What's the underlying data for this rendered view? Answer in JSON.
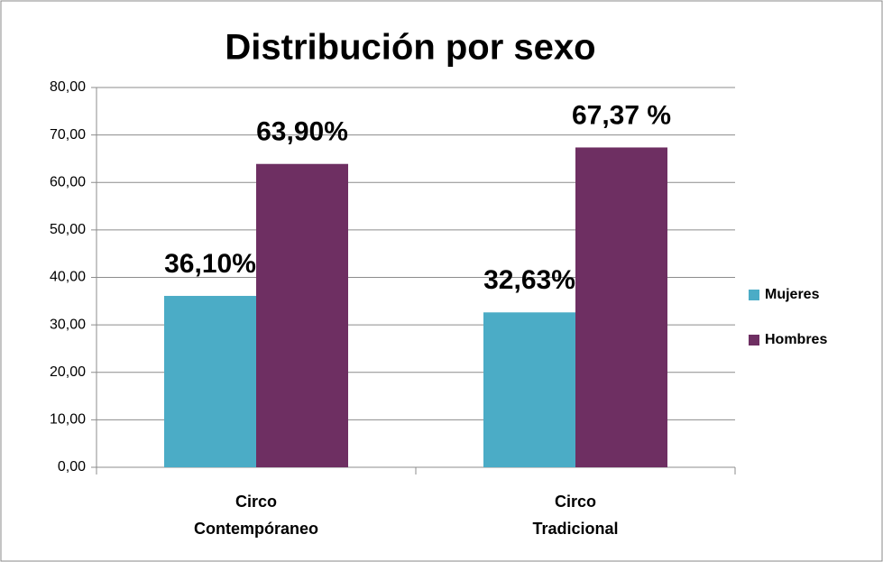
{
  "chart_data": {
    "type": "bar",
    "title": "Distribución por sexo",
    "categories": [
      [
        "Circo",
        "Contempóraneo"
      ],
      [
        "Circo",
        "Tradicional"
      ]
    ],
    "series": [
      {
        "name": "Mujeres",
        "color": "#4bacc6",
        "values": [
          36.1,
          32.63
        ],
        "value_labels": [
          "36,10%",
          "32,63%"
        ]
      },
      {
        "name": "Hombres",
        "color": "#6e2f62",
        "values": [
          63.9,
          67.37
        ],
        "value_labels": [
          "63,90%",
          "67,37 %"
        ]
      }
    ],
    "ylim": [
      0,
      80
    ],
    "yticks": [
      {
        "value": 0,
        "label": "0,00"
      },
      {
        "value": 10,
        "label": "10,00"
      },
      {
        "value": 20,
        "label": "20,00"
      },
      {
        "value": 30,
        "label": "30,00"
      },
      {
        "value": 40,
        "label": "40,00"
      },
      {
        "value": 50,
        "label": "50,00"
      },
      {
        "value": 60,
        "label": "60,00"
      },
      {
        "value": 70,
        "label": "70,00"
      },
      {
        "value": 80,
        "label": "80,00"
      }
    ],
    "grid": true,
    "legend": "right"
  }
}
